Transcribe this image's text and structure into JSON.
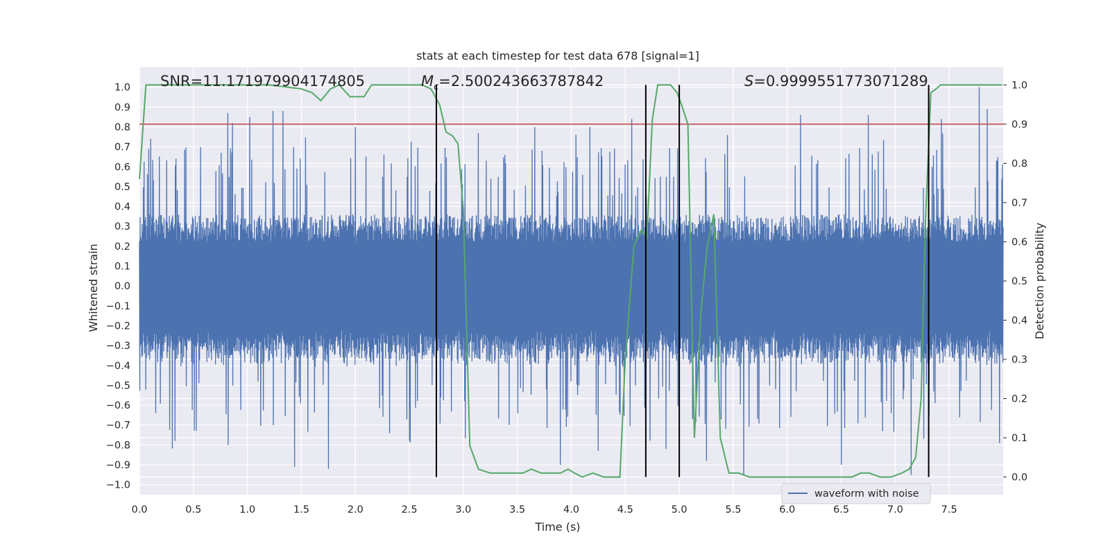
{
  "chart_data": {
    "type": "line",
    "title": "stats at each timestep for test data 678 [signal=1]",
    "xlabel": "Time (s)",
    "ylabel": "Whitened strain",
    "y2label": "Detection probability",
    "xlim": [
      0.0,
      8.0
    ],
    "ylim": [
      -1.05,
      1.1
    ],
    "y2lim": [
      -0.045,
      1.045
    ],
    "xticks": [
      0.0,
      0.5,
      1.0,
      1.5,
      2.0,
      2.5,
      3.0,
      3.5,
      4.0,
      4.5,
      5.0,
      5.5,
      6.0,
      6.5,
      7.0,
      7.5
    ],
    "yticks": [
      -1.0,
      -0.9,
      -0.8,
      -0.7,
      -0.6,
      -0.5,
      -0.4,
      -0.3,
      -0.2,
      -0.1,
      0.0,
      0.1,
      0.2,
      0.3,
      0.4,
      0.5,
      0.6,
      0.7,
      0.8,
      0.9,
      1.0
    ],
    "y2ticks": [
      0.0,
      0.1,
      0.2,
      0.3,
      0.4,
      0.5,
      0.6,
      0.7,
      0.8,
      0.9,
      1.0
    ],
    "annotations": {
      "snr": "SNR=11.171979904174805",
      "mc_symbol": "M",
      "mc_sub": "c",
      "mc_value": "=2.500243663787842",
      "s_symbol": "S",
      "s_value": "=0.9999551773071289"
    },
    "legend": {
      "label": "waveform with noise",
      "placement": "lower-right"
    },
    "threshold": {
      "axis": "y2",
      "value": 0.9,
      "color": "#c44e52"
    },
    "vlines": {
      "x": [
        2.75,
        4.69,
        5.0,
        7.31
      ],
      "y2range": [
        0.0,
        1.0
      ],
      "color": "#000000"
    },
    "series": [
      {
        "name": "waveform with noise",
        "axis": "y",
        "color": "#4c72b0",
        "x_range": [
          0.0,
          8.0
        ],
        "base_amplitude": 0.3,
        "extreme_peaks_top": [
          [
            0.82,
            0.87
          ],
          [
            0.86,
            0.82
          ],
          [
            1.02,
            0.85
          ],
          [
            1.24,
            0.88
          ],
          [
            1.33,
            0.88
          ],
          [
            2.0,
            0.8
          ],
          [
            3.66,
            0.8
          ],
          [
            4.17,
            0.8
          ],
          [
            4.56,
            0.84
          ],
          [
            6.12,
            0.86
          ],
          [
            6.75,
            0.86
          ],
          [
            7.43,
            0.84
          ],
          [
            7.78,
            1.0
          ],
          [
            7.85,
            0.89
          ]
        ],
        "extreme_peaks_bottom": [
          [
            0.33,
            -0.78
          ],
          [
            0.82,
            -0.8
          ],
          [
            1.44,
            -0.91
          ],
          [
            1.75,
            -0.92
          ],
          [
            2.5,
            -0.78
          ],
          [
            3.9,
            -0.9
          ],
          [
            4.25,
            -0.83
          ],
          [
            4.88,
            -0.82
          ],
          [
            5.25,
            -0.88
          ],
          [
            5.6,
            -0.95
          ],
          [
            6.5,
            -0.9
          ],
          [
            7.15,
            -0.95
          ]
        ],
        "y_range": [
          -0.95,
          1.0
        ]
      },
      {
        "name": "detection probability",
        "axis": "y2",
        "color": "#55a868",
        "x": [
          0.0,
          0.06,
          0.15,
          0.3,
          0.5,
          0.8,
          1.2,
          1.5,
          1.6,
          1.68,
          1.77,
          1.85,
          1.95,
          2.0,
          2.08,
          2.15,
          2.3,
          2.5,
          2.62,
          2.7,
          2.78,
          2.84,
          2.9,
          2.95,
          3.0,
          3.06,
          3.14,
          3.25,
          3.35,
          3.45,
          3.55,
          3.63,
          3.72,
          3.82,
          3.9,
          3.97,
          4.03,
          4.1,
          4.2,
          4.3,
          4.38,
          4.45,
          4.5,
          4.58,
          4.65,
          4.7,
          4.75,
          4.8,
          4.85,
          4.92,
          4.98,
          5.02,
          5.08,
          5.14,
          5.2,
          5.26,
          5.32,
          5.38,
          5.46,
          5.55,
          5.65,
          5.8,
          6.0,
          6.2,
          6.4,
          6.6,
          6.68,
          6.76,
          6.86,
          6.96,
          7.06,
          7.13,
          7.19,
          7.24,
          7.28,
          7.33,
          7.38,
          7.42,
          7.5,
          7.7,
          7.99
        ],
        "values": [
          0.76,
          1.0,
          1.0,
          1.0,
          1.0,
          1.0,
          1.0,
          0.99,
          0.98,
          0.96,
          0.99,
          1.0,
          0.97,
          0.97,
          0.97,
          1.0,
          1.0,
          1.0,
          1.0,
          0.99,
          0.95,
          0.88,
          0.87,
          0.85,
          0.68,
          0.08,
          0.02,
          0.01,
          0.01,
          0.01,
          0.01,
          0.02,
          0.01,
          0.01,
          0.01,
          0.02,
          0.01,
          0.0,
          0.01,
          0.0,
          0.0,
          0.0,
          0.3,
          0.59,
          0.63,
          0.61,
          0.91,
          1.0,
          1.0,
          1.0,
          0.98,
          0.95,
          0.9,
          0.1,
          0.42,
          0.59,
          0.67,
          0.1,
          0.01,
          0.01,
          0.0,
          0.0,
          0.0,
          0.0,
          0.0,
          0.0,
          0.01,
          0.01,
          0.0,
          0.0,
          0.01,
          0.02,
          0.05,
          0.2,
          0.65,
          0.98,
          0.99,
          1.0,
          1.0,
          1.0,
          1.0
        ]
      }
    ]
  }
}
